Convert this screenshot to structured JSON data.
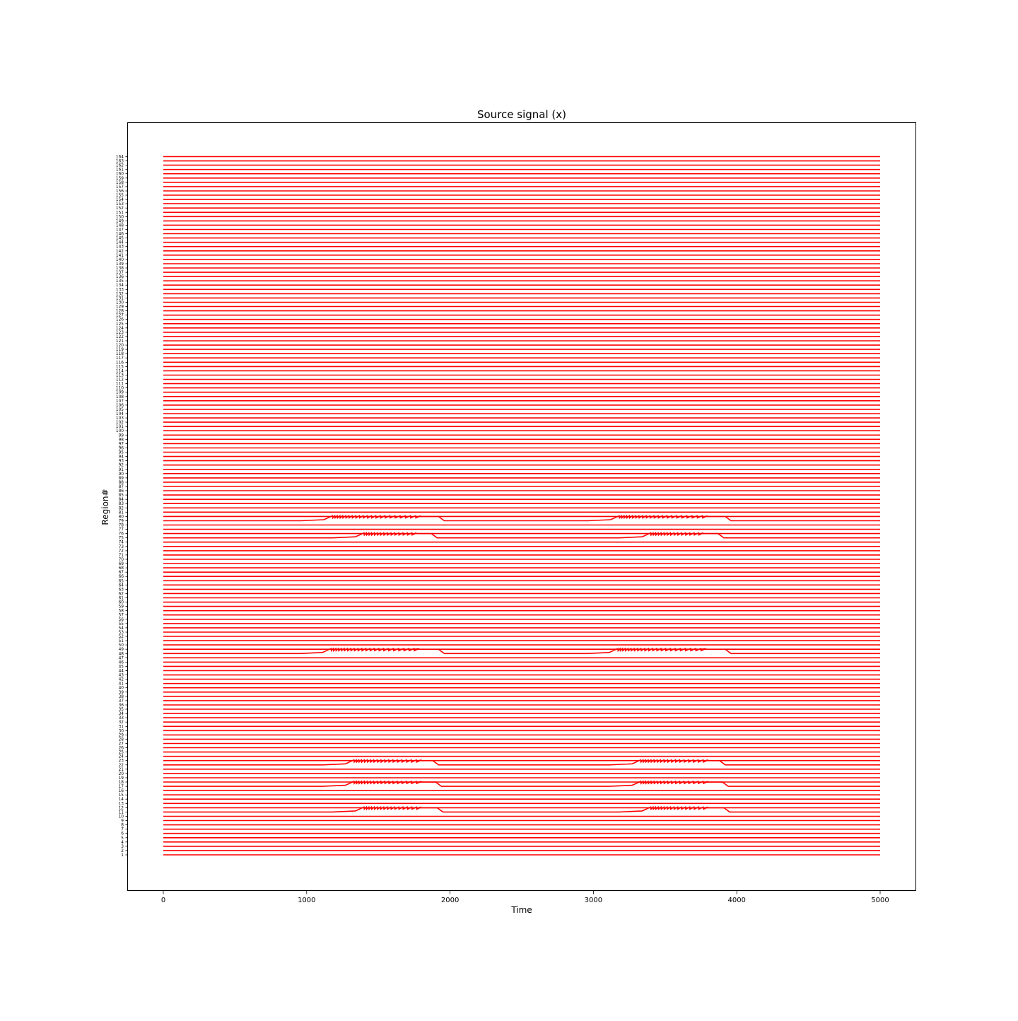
{
  "chart_data": {
    "type": "line",
    "title": "Source signal (x)",
    "xlabel": "Time",
    "ylabel": "Region#",
    "xlim": [
      -250,
      5250
    ],
    "x_ticks": [
      0,
      1000,
      2000,
      3000,
      4000,
      5000
    ],
    "x_tick_labels": [
      "0",
      "1000",
      "2000",
      "3000",
      "4000",
      "5000"
    ],
    "x_range": [
      0,
      5000
    ],
    "region_count": 164,
    "grid": false,
    "legend": "none",
    "colors": {
      "trace": "#ff0000",
      "axes": "#000000",
      "background": "#ffffff"
    },
    "seizure_regions": [
      {
        "region": 11,
        "bursts": [
          {
            "onset": 1400,
            "spike_start": 1400,
            "spike_end": 1780,
            "offset": 1950
          },
          {
            "onset": 3400,
            "spike_start": 3400,
            "spike_end": 3780,
            "offset": 3950
          }
        ]
      },
      {
        "region": 17,
        "bursts": [
          {
            "onset": 1330,
            "spike_start": 1330,
            "spike_end": 1780,
            "offset": 1940
          },
          {
            "onset": 3330,
            "spike_start": 3330,
            "spike_end": 3780,
            "offset": 3940
          }
        ]
      },
      {
        "region": 22,
        "bursts": [
          {
            "onset": 1330,
            "spike_start": 1330,
            "spike_end": 1780,
            "offset": 1920
          },
          {
            "onset": 3330,
            "spike_start": 3330,
            "spike_end": 3780,
            "offset": 3920
          }
        ]
      },
      {
        "region": 48,
        "bursts": [
          {
            "onset": 1170,
            "spike_start": 1170,
            "spike_end": 1750,
            "offset": 1960
          },
          {
            "onset": 3170,
            "spike_start": 3170,
            "spike_end": 3750,
            "offset": 3960
          }
        ]
      },
      {
        "region": 75,
        "bursts": [
          {
            "onset": 1400,
            "spike_start": 1400,
            "spike_end": 1750,
            "offset": 1910
          },
          {
            "onset": 3400,
            "spike_start": 3400,
            "spike_end": 3750,
            "offset": 3910
          }
        ]
      },
      {
        "region": 79,
        "bursts": [
          {
            "onset": 1180,
            "spike_start": 1180,
            "spike_end": 1780,
            "offset": 1960
          },
          {
            "onset": 3180,
            "spike_start": 3180,
            "spike_end": 3780,
            "offset": 3960
          }
        ]
      }
    ]
  }
}
